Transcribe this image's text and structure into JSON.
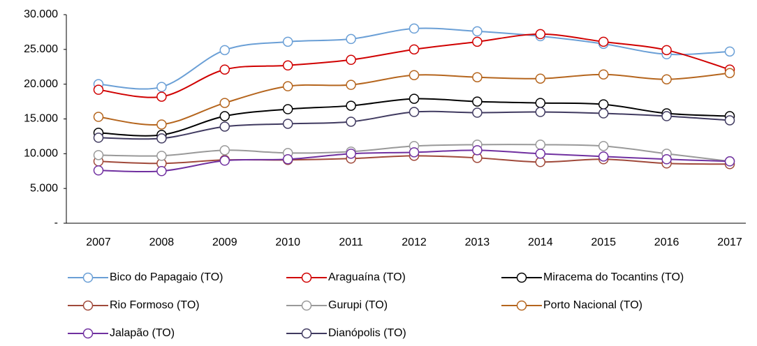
{
  "chart_data": {
    "type": "line",
    "categories": [
      "2007",
      "2008",
      "2009",
      "2010",
      "2011",
      "2012",
      "2013",
      "2014",
      "2015",
      "2016",
      "2017"
    ],
    "ylim": [
      0,
      30000
    ],
    "yticks": [
      {
        "value": 0,
        "label": "-"
      },
      {
        "value": 5000,
        "label": "5.000"
      },
      {
        "value": 10000,
        "label": "10.000"
      },
      {
        "value": 15000,
        "label": "15.000"
      },
      {
        "value": 20000,
        "label": "20.000"
      },
      {
        "value": 25000,
        "label": "25.000"
      },
      {
        "value": 30000,
        "label": "30.000"
      }
    ],
    "grid": false,
    "smooth": true,
    "series": [
      {
        "name": "Bico do Papagaio (TO)",
        "color": "#6a9fd6",
        "values": [
          20000,
          19600,
          24900,
          26100,
          26500,
          28000,
          27600,
          26900,
          25800,
          24300,
          24700
        ]
      },
      {
        "name": "Araguaína (TO)",
        "color": "#d00000",
        "values": [
          19200,
          18200,
          22100,
          22700,
          23500,
          25000,
          26100,
          27200,
          26100,
          24900,
          22100
        ]
      },
      {
        "name": "Miracema do Tocantins (TO)",
        "color": "#000000",
        "values": [
          13000,
          12700,
          15400,
          16400,
          16900,
          17900,
          17500,
          17300,
          17100,
          15800,
          15400
        ]
      },
      {
        "name": "Rio Formoso (TO)",
        "color": "#a0493a",
        "values": [
          8900,
          8600,
          9100,
          9100,
          9300,
          9700,
          9400,
          8800,
          9200,
          8600,
          8500
        ]
      },
      {
        "name": "Gurupi (TO)",
        "color": "#999999",
        "values": [
          9800,
          9700,
          10500,
          10100,
          10300,
          11100,
          11300,
          11300,
          11100,
          10000,
          8900
        ]
      },
      {
        "name": "Porto Nacional (TO)",
        "color": "#b5651d",
        "values": [
          15300,
          14200,
          17300,
          19700,
          19900,
          21300,
          21000,
          20800,
          21400,
          20700,
          21600
        ]
      },
      {
        "name": "Jalapão (TO)",
        "color": "#7030a0",
        "values": [
          7600,
          7500,
          9000,
          9200,
          10000,
          10200,
          10500,
          10000,
          9600,
          9200,
          8900
        ]
      },
      {
        "name": "Dianópolis (TO)",
        "color": "#403a60",
        "values": [
          12300,
          12200,
          13900,
          14300,
          14600,
          16000,
          15900,
          16000,
          15800,
          15400,
          14800
        ]
      }
    ]
  }
}
